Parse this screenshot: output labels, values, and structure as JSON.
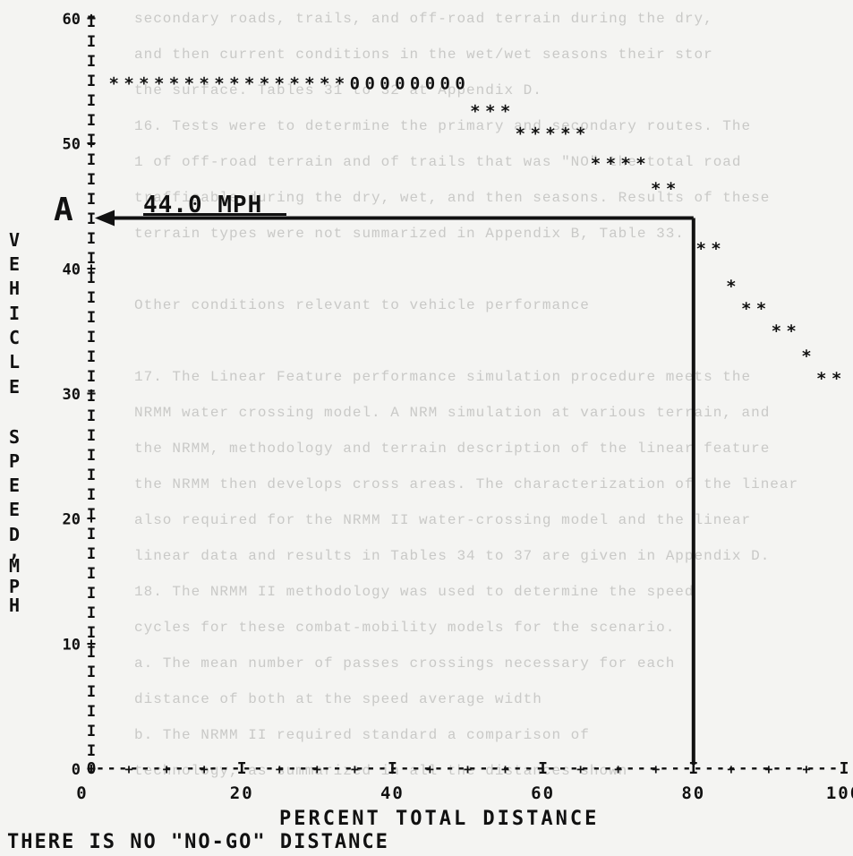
{
  "background_text": [
    "secondary roads, trails, and off-road terrain during the dry,",
    "and then current conditions in the wet/wet seasons their stor",
    "the surface. Tables 31 to 32 at Appendix D.",
    "16. Tests were to determine the primary and secondary routes. The",
    "1 of off-road terrain and of trails that was \"NO\" the total road",
    "trafficable during the dry, wet, and then seasons. Results of these",
    "terrain types were not summarized in Appendix B, Table 33.",
    "",
    "Other conditions relevant to vehicle performance",
    "",
    "17. The Linear Feature performance simulation procedure meets the",
    "NRMM water crossing model. A NRM simulation at various terrain, and",
    "the NRMM, methodology and terrain description of the linear feature",
    "the NRMM then develops cross areas. The characterization of the linear",
    "also required for the NRMM II water-crossing model and the linear",
    "linear data and results in Tables 34 to 37 are given in Appendix D.",
    "18. The NRMM II methodology was used to determine the speed",
    "cycles for these combat-mobility models for the scenario.",
    "a. The mean number of passes crossings necessary for each",
    "   distance of both at the speed average width",
    "b. The NRMM II required standard a comparison of",
    "technology, as summarized in all the distances shown"
  ],
  "chart_data": {
    "type": "scatter",
    "title": "",
    "xlabel": "PERCENT TOTAL DISTANCE",
    "ylabel": "VEHICLE SPEED, MPH",
    "ylabel_chars": [
      "V",
      "E",
      "H",
      "I",
      "C",
      "L",
      "E",
      "",
      "S",
      "P",
      "E",
      "E",
      "D",
      ",",
      "M",
      "P",
      "H"
    ],
    "xlim": [
      0,
      100
    ],
    "ylim": [
      0,
      60
    ],
    "x_ticks": [
      0,
      20,
      40,
      60,
      80,
      100
    ],
    "x_tick_labels": [
      "0",
      "20",
      "40",
      "60",
      "80",
      "100"
    ],
    "y_ticks": [
      0,
      10,
      20,
      30,
      40,
      50,
      60
    ],
    "y_tick_labels": [
      "0",
      "10",
      "20",
      "30",
      "40",
      "50",
      "60"
    ],
    "series": [
      {
        "x": [
          3,
          5,
          7,
          9,
          11,
          13,
          15,
          17,
          19,
          21,
          23,
          25,
          27,
          29,
          31,
          33,
          35,
          37,
          39,
          41,
          43,
          45,
          47,
          49,
          51,
          53,
          55,
          57,
          59,
          61,
          63,
          65,
          67,
          69,
          71,
          73,
          75,
          77,
          79,
          81,
          83,
          85,
          87,
          89,
          91,
          93,
          95,
          97,
          99
        ],
        "y": [
          54.8,
          54.8,
          54.8,
          54.8,
          54.8,
          54.8,
          54.8,
          54.8,
          54.8,
          54.8,
          54.8,
          54.8,
          54.8,
          54.8,
          54.8,
          54.8,
          54.8,
          54.8,
          54.8,
          54.8,
          54.8,
          54.8,
          54.8,
          54.8,
          52.6,
          52.6,
          52.6,
          50.8,
          50.8,
          50.8,
          50.8,
          50.8,
          48.4,
          48.4,
          48.4,
          48.4,
          46.4,
          46.4,
          null,
          41.6,
          41.6,
          38.6,
          36.8,
          36.8,
          35.0,
          35.0,
          33.0,
          31.2,
          31.2
        ],
        "symbols": [
          "*",
          "*",
          "*",
          "*",
          "*",
          "*",
          "*",
          "*",
          "*",
          "*",
          "*",
          "*",
          "*",
          "*",
          "*",
          "*",
          "0",
          "0",
          "0",
          "0",
          "0",
          "0",
          "0",
          "0",
          "*",
          "*",
          "*",
          "*",
          "*",
          "*",
          "*",
          "*",
          "*",
          "*",
          "*",
          "*",
          "*",
          "*",
          "",
          "*",
          "*",
          "*",
          "*",
          "*",
          "*",
          "*",
          "*",
          "*",
          "*"
        ]
      }
    ],
    "annotations": [
      {
        "label": "A",
        "text": "44.0 MPH",
        "y": 44.0,
        "x_start": 0,
        "x_end": 80,
        "arrow": true
      }
    ],
    "footnote": "THERE IS NO \"NO-GO\" DISTANCE",
    "grid": false
  }
}
